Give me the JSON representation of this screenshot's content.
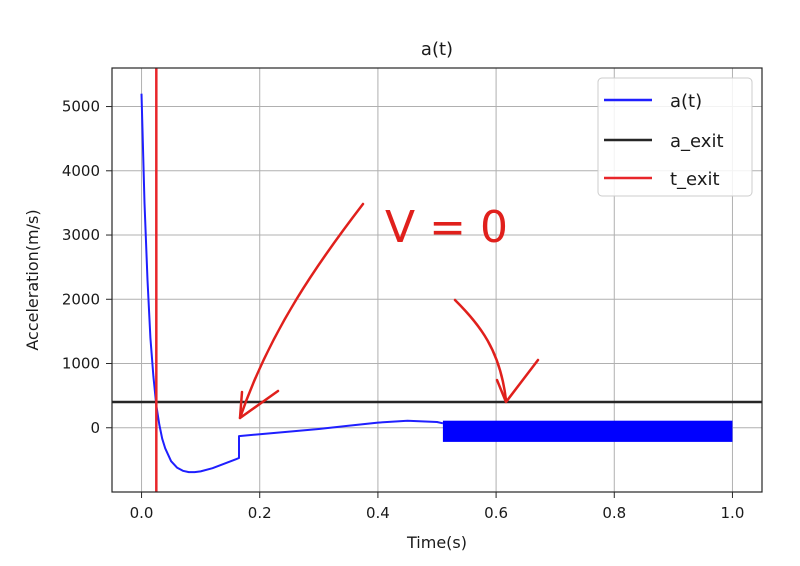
{
  "chart_data": {
    "type": "line",
    "title": "a(t)",
    "xlabel": "Time(s)",
    "ylabel": "Acceleration(m/s)",
    "xlim": [
      -0.05,
      1.05
    ],
    "ylim": [
      -1000,
      5600
    ],
    "x_ticks": [
      0.0,
      0.2,
      0.4,
      0.6,
      0.8,
      1.0
    ],
    "x_tick_labels": [
      "0.0",
      "0.2",
      "0.4",
      "0.6",
      "0.8",
      "1.0"
    ],
    "y_ticks": [
      0,
      1000,
      2000,
      3000,
      4000,
      5000
    ],
    "y_tick_labels": [
      "0",
      "1000",
      "2000",
      "3000",
      "4000",
      "5000"
    ],
    "grid": true,
    "legend_position": "top-right",
    "series": [
      {
        "name": "a(t)",
        "kind": "line",
        "color": "#1f1fff",
        "x": [
          0.0,
          0.005,
          0.01,
          0.015,
          0.02,
          0.025,
          0.03,
          0.035,
          0.04,
          0.05,
          0.06,
          0.07,
          0.08,
          0.09,
          0.1,
          0.12,
          0.14,
          0.16,
          0.165,
          0.165,
          0.2,
          0.25,
          0.3,
          0.35,
          0.4,
          0.45,
          0.5,
          0.51
        ],
        "y": [
          5200,
          3500,
          2300,
          1400,
          800,
          350,
          50,
          -170,
          -320,
          -520,
          -620,
          -670,
          -690,
          -690,
          -680,
          -630,
          -560,
          -490,
          -470,
          -130,
          -100,
          -60,
          -20,
          30,
          80,
          110,
          90,
          70
        ]
      },
      {
        "name": "a(t)",
        "kind": "band",
        "color": "#0000ff",
        "x_start": 0.51,
        "x_end": 1.0,
        "y_low": -220,
        "y_high": 110
      },
      {
        "name": "a_exit",
        "kind": "hline",
        "color": "#262626",
        "y": 400
      },
      {
        "name": "t_exit",
        "kind": "vline",
        "color": "#e8262a",
        "x": 0.025
      }
    ],
    "legend": [
      {
        "label": "a(t)",
        "color": "#1f1fff"
      },
      {
        "label": "a_exit",
        "color": "#262626"
      },
      {
        "label": "t_exit",
        "color": "#e8262a"
      }
    ],
    "annotations": [
      {
        "text": "V = 0",
        "color": "#e0201c"
      }
    ]
  }
}
